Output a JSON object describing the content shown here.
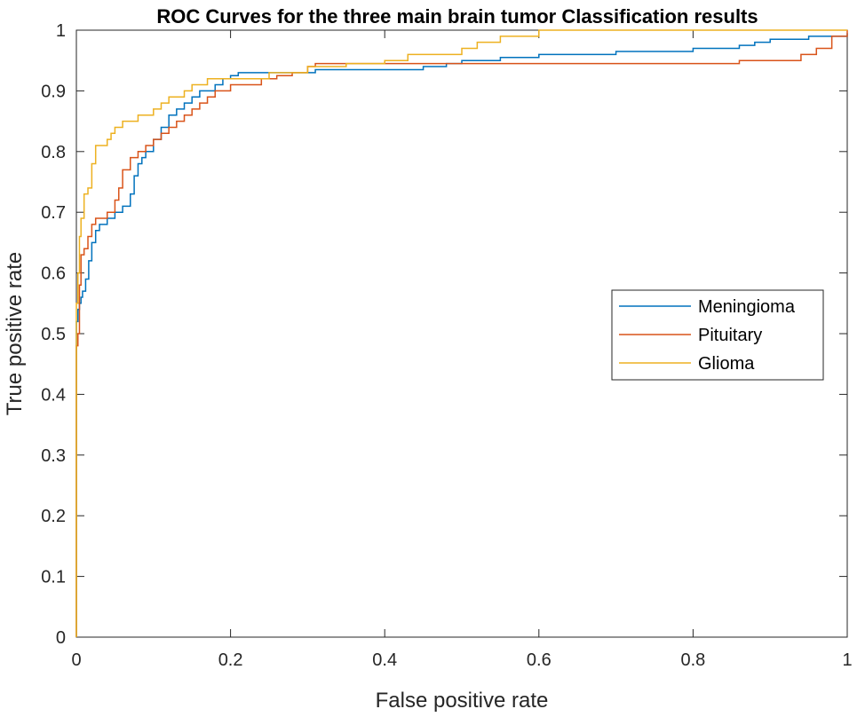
{
  "chart_data": {
    "type": "line",
    "title": "ROC Curves for the three main brain tumor Classification results",
    "xlabel": "False positive rate",
    "ylabel": "True positive rate",
    "xlim": [
      0,
      1
    ],
    "ylim": [
      0,
      1
    ],
    "xticks": [
      "0",
      "0.2",
      "0.4",
      "0.6",
      "0.8",
      "1"
    ],
    "yticks": [
      "0",
      "0.1",
      "0.2",
      "0.3",
      "0.4",
      "0.5",
      "0.6",
      "0.7",
      "0.8",
      "0.9",
      "1"
    ],
    "grid": false,
    "legend_position": "right",
    "series": [
      {
        "name": "Meningioma",
        "color": "#0072BD",
        "step": true,
        "x": [
          0,
          0,
          0.002,
          0.004,
          0.006,
          0.008,
          0.012,
          0.016,
          0.02,
          0.025,
          0.03,
          0.04,
          0.05,
          0.06,
          0.07,
          0.075,
          0.08,
          0.085,
          0.09,
          0.1,
          0.11,
          0.12,
          0.13,
          0.14,
          0.15,
          0.16,
          0.17,
          0.18,
          0.19,
          0.2,
          0.21,
          0.22,
          0.25,
          0.28,
          0.3,
          0.31,
          0.32,
          0.35,
          0.4,
          0.45,
          0.48,
          0.5,
          0.55,
          0.6,
          0.7,
          0.8,
          0.86,
          0.88,
          0.9,
          0.95,
          1
        ],
        "y": [
          0,
          0.52,
          0.54,
          0.55,
          0.56,
          0.57,
          0.59,
          0.62,
          0.65,
          0.67,
          0.68,
          0.69,
          0.7,
          0.71,
          0.73,
          0.76,
          0.78,
          0.79,
          0.8,
          0.82,
          0.84,
          0.86,
          0.87,
          0.88,
          0.89,
          0.9,
          0.9,
          0.91,
          0.92,
          0.925,
          0.93,
          0.93,
          0.93,
          0.93,
          0.93,
          0.935,
          0.935,
          0.935,
          0.935,
          0.94,
          0.945,
          0.95,
          0.955,
          0.96,
          0.965,
          0.97,
          0.975,
          0.98,
          0.985,
          0.99,
          0.995
        ]
      },
      {
        "name": "Pituitary",
        "color": "#D95319",
        "step": true,
        "x": [
          0,
          0,
          0.002,
          0.004,
          0.006,
          0.01,
          0.015,
          0.02,
          0.025,
          0.03,
          0.04,
          0.05,
          0.055,
          0.06,
          0.07,
          0.08,
          0.09,
          0.1,
          0.11,
          0.12,
          0.13,
          0.14,
          0.15,
          0.16,
          0.17,
          0.18,
          0.2,
          0.22,
          0.24,
          0.26,
          0.28,
          0.3,
          0.31,
          0.35,
          0.4,
          0.45,
          0.5,
          0.6,
          0.7,
          0.8,
          0.86,
          0.9,
          0.94,
          0.96,
          0.98,
          1
        ],
        "y": [
          0,
          0.48,
          0.5,
          0.58,
          0.63,
          0.64,
          0.66,
          0.68,
          0.69,
          0.69,
          0.7,
          0.72,
          0.74,
          0.77,
          0.79,
          0.8,
          0.81,
          0.82,
          0.83,
          0.84,
          0.85,
          0.86,
          0.87,
          0.88,
          0.89,
          0.9,
          0.91,
          0.91,
          0.92,
          0.925,
          0.93,
          0.94,
          0.945,
          0.945,
          0.945,
          0.945,
          0.945,
          0.945,
          0.945,
          0.945,
          0.95,
          0.95,
          0.96,
          0.97,
          0.99,
          1.0
        ]
      },
      {
        "name": "Glioma",
        "color": "#EDB120",
        "step": true,
        "x": [
          0,
          0,
          0.002,
          0.004,
          0.006,
          0.01,
          0.015,
          0.02,
          0.025,
          0.04,
          0.045,
          0.05,
          0.06,
          0.07,
          0.08,
          0.09,
          0.1,
          0.11,
          0.12,
          0.13,
          0.14,
          0.15,
          0.17,
          0.2,
          0.25,
          0.28,
          0.3,
          0.32,
          0.35,
          0.4,
          0.43,
          0.5,
          0.52,
          0.53,
          0.55,
          0.6,
          0.7,
          1
        ],
        "y": [
          0,
          0.55,
          0.6,
          0.66,
          0.69,
          0.73,
          0.74,
          0.78,
          0.81,
          0.82,
          0.83,
          0.84,
          0.85,
          0.85,
          0.86,
          0.86,
          0.87,
          0.88,
          0.89,
          0.89,
          0.9,
          0.91,
          0.92,
          0.92,
          0.93,
          0.93,
          0.94,
          0.94,
          0.945,
          0.95,
          0.96,
          0.97,
          0.98,
          0.98,
          0.99,
          1.0,
          1.0,
          1.0
        ]
      }
    ]
  }
}
